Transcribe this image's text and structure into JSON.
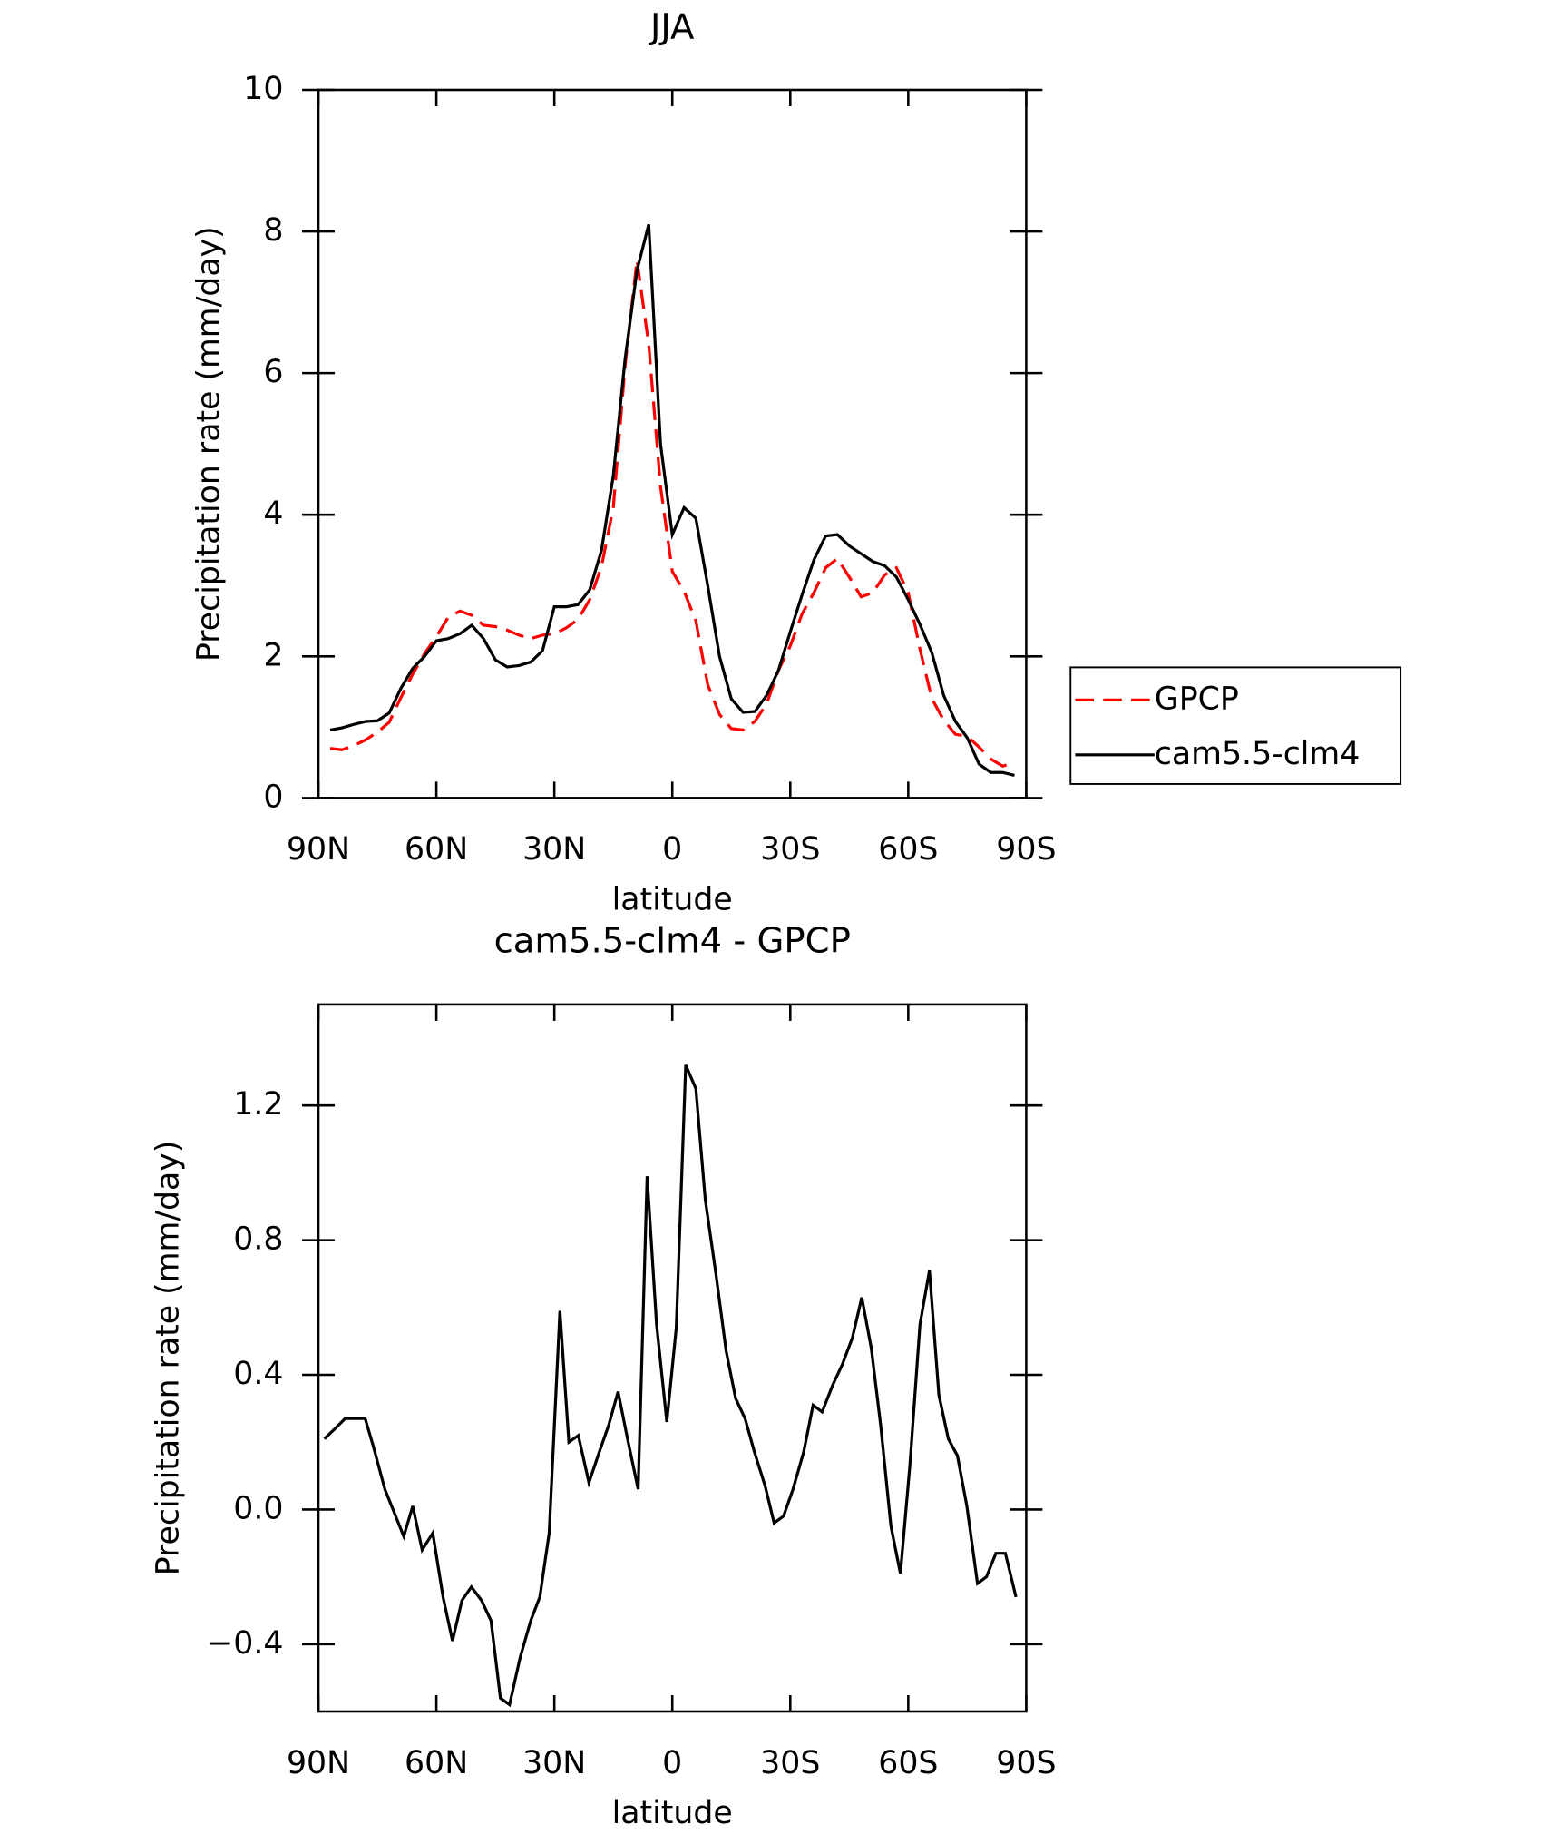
{
  "chart_data": [
    {
      "type": "line",
      "title": "JJA",
      "xlabel": "latitude",
      "ylabel": "Precipitation rate (mm/day)",
      "x": [
        87,
        84,
        81,
        78,
        75,
        72,
        69,
        66,
        63,
        60,
        57,
        54,
        51,
        48,
        45,
        42,
        39,
        36,
        33,
        30,
        27,
        24,
        21,
        18,
        15,
        12,
        9,
        6,
        3,
        0,
        -3,
        -6,
        -9,
        -12,
        -15,
        -18,
        -21,
        -24,
        -27,
        -30,
        -33,
        -36,
        -39,
        -42,
        -45,
        -48,
        -51,
        -54,
        -57,
        -60,
        -63,
        -66,
        -69,
        -72,
        -75,
        -78,
        -81,
        -84,
        -87
      ],
      "series": [
        {
          "name": "GPCP",
          "color": "#ff0000",
          "style": "dashed",
          "values": [
            0.7,
            0.68,
            0.74,
            0.82,
            0.93,
            1.07,
            1.42,
            1.75,
            2.04,
            2.28,
            2.55,
            2.64,
            2.58,
            2.44,
            2.42,
            2.37,
            2.3,
            2.25,
            2.3,
            2.32,
            2.4,
            2.52,
            2.8,
            3.27,
            4.1,
            6.1,
            7.6,
            6.4,
            4.4,
            3.2,
            2.92,
            2.5,
            1.6,
            1.18,
            0.98,
            0.96,
            1.08,
            1.33,
            1.8,
            2.15,
            2.6,
            2.9,
            3.25,
            3.38,
            3.12,
            2.84,
            2.9,
            3.15,
            3.25,
            2.9,
            2.1,
            1.4,
            1.1,
            0.9,
            0.87,
            0.72,
            0.55,
            0.45,
            0.5
          ]
        },
        {
          "name": "cam5.5-clm4",
          "color": "#000000",
          "style": "solid",
          "values": [
            0.96,
            0.99,
            1.04,
            1.08,
            1.09,
            1.2,
            1.55,
            1.83,
            2.0,
            2.22,
            2.25,
            2.32,
            2.44,
            2.25,
            1.95,
            1.85,
            1.87,
            1.92,
            2.08,
            2.7,
            2.7,
            2.73,
            2.94,
            3.5,
            4.55,
            6.2,
            7.45,
            8.1,
            5.0,
            3.72,
            4.1,
            3.95,
            3.0,
            2.0,
            1.4,
            1.21,
            1.22,
            1.45,
            1.8,
            2.35,
            2.87,
            3.36,
            3.7,
            3.72,
            3.56,
            3.45,
            3.34,
            3.28,
            3.12,
            2.8,
            2.45,
            2.05,
            1.45,
            1.08,
            0.85,
            0.48,
            0.36,
            0.36,
            0.32
          ]
        }
      ],
      "xlim": [
        90,
        -90
      ],
      "xticks": [
        {
          "value": 90,
          "label": "90N"
        },
        {
          "value": 60,
          "label": "60N"
        },
        {
          "value": 30,
          "label": "30N"
        },
        0,
        {
          "value": -30,
          "label": "30S"
        },
        {
          "value": -60,
          "label": "60S"
        },
        {
          "value": -90,
          "label": "90S"
        }
      ],
      "ylim": [
        0,
        10
      ],
      "yticks": [
        0,
        2,
        4,
        6,
        8,
        10
      ],
      "legend": "right"
    },
    {
      "type": "line",
      "title": "cam5.5-clm4 - GPCP",
      "xlabel": "latitude",
      "ylabel": "Precipitation rate (mm/day)",
      "x": [
        88.5,
        85.8,
        83.2,
        80.5,
        78.1,
        76.1,
        73.1,
        70.7,
        68.3,
        66.0,
        63.6,
        60.9,
        58.3,
        55.9,
        53.5,
        51.1,
        48.5,
        46.1,
        43.7,
        41.4,
        38.7,
        36.0,
        33.7,
        31.3,
        28.6,
        26.3,
        23.9,
        21.2,
        18.6,
        16.2,
        13.8,
        11.4,
        8.7,
        6.4,
        4.0,
        1.4,
        -1.0,
        -3.4,
        -6.0,
        -8.4,
        -11.1,
        -13.7,
        -16.1,
        -18.5,
        -20.9,
        -23.6,
        -25.9,
        -28.3,
        -30.7,
        -33.4,
        -35.8,
        -38.1,
        -40.8,
        -43.2,
        -45.8,
        -48.2,
        -50.6,
        -53.0,
        -55.6,
        -58.0,
        -60.4,
        -63.0,
        -65.4,
        -67.8,
        -70.2,
        -72.5,
        -74.9,
        -77.6,
        -79.9,
        -82.3,
        -84.7,
        -87.4
      ],
      "series": [
        {
          "color": "#000000",
          "style": "solid",
          "values": [
            0.21,
            0.24,
            0.27,
            0.27,
            0.27,
            0.19,
            0.06,
            -0.01,
            -0.08,
            0.01,
            -0.12,
            -0.07,
            -0.26,
            -0.39,
            -0.27,
            -0.23,
            -0.27,
            -0.33,
            -0.56,
            -0.58,
            -0.44,
            -0.33,
            -0.26,
            -0.07,
            0.59,
            0.2,
            0.22,
            0.08,
            0.17,
            0.25,
            0.35,
            0.21,
            0.06,
            0.99,
            0.55,
            0.26,
            0.54,
            1.32,
            1.25,
            0.92,
            0.7,
            0.47,
            0.33,
            0.27,
            0.17,
            0.07,
            -0.04,
            -0.02,
            0.06,
            0.17,
            0.31,
            0.29,
            0.37,
            0.43,
            0.51,
            0.63,
            0.48,
            0.25,
            -0.05,
            -0.19,
            0.13,
            0.55,
            0.71,
            0.34,
            0.21,
            0.16,
            0.01,
            -0.22,
            -0.2,
            -0.13,
            -0.13,
            -0.26
          ]
        }
      ],
      "xlim": [
        90,
        -90
      ],
      "xticks": [
        {
          "value": 90,
          "label": "90N"
        },
        {
          "value": 60,
          "label": "60N"
        },
        {
          "value": 30,
          "label": "30N"
        },
        0,
        {
          "value": -30,
          "label": "30S"
        },
        {
          "value": -60,
          "label": "60S"
        },
        {
          "value": -90,
          "label": "90S"
        }
      ],
      "ylim": [
        -0.6,
        1.5
      ],
      "yticks": [
        {
          "value": -0.4,
          "label": "−0.4"
        },
        {
          "value": 0,
          "label": "0.0"
        },
        {
          "value": 0.4,
          "label": "0.4"
        },
        {
          "value": 0.8,
          "label": "0.8"
        },
        {
          "value": 1.2,
          "label": "1.2"
        }
      ]
    }
  ]
}
